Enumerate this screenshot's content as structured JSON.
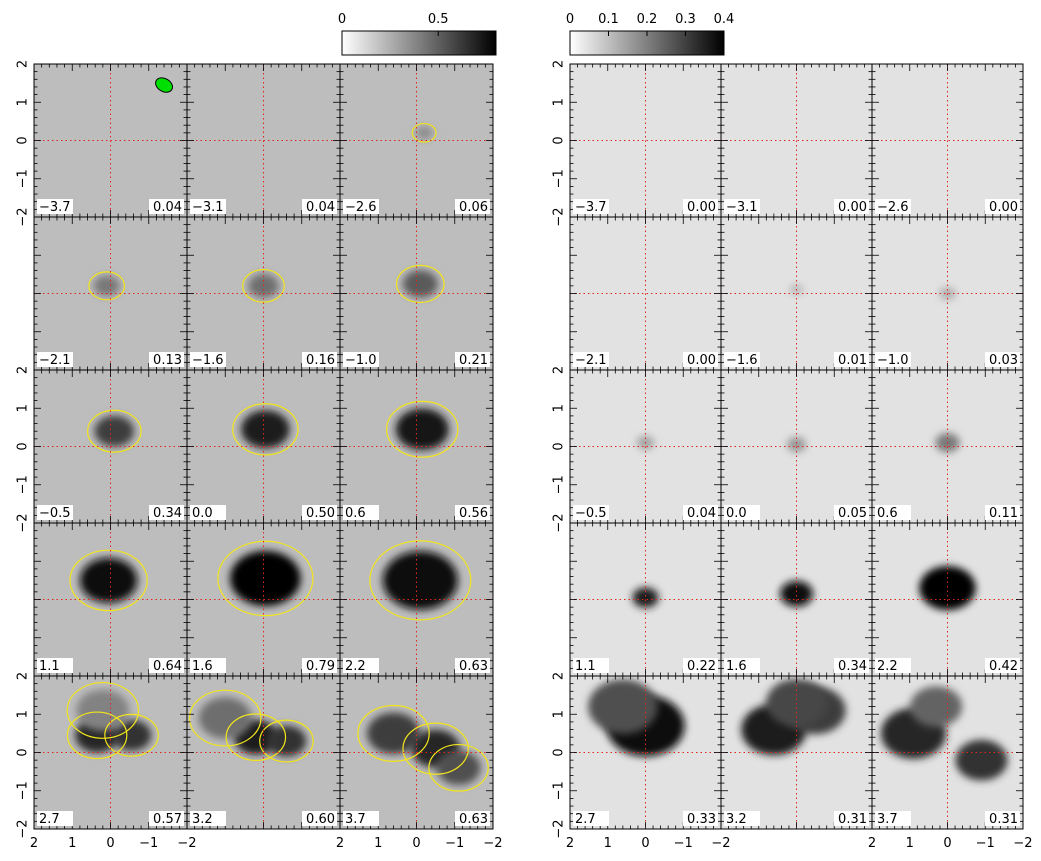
{
  "chart_data": {
    "type": "heatmap",
    "xlim": [
      2,
      -2
    ],
    "ylim": [
      -2,
      2
    ],
    "grid": false,
    "crosshair": {
      "x": 0,
      "y": 0,
      "color": "#e0261e"
    },
    "x_tick_labels": [
      "2",
      "1",
      "0",
      "−1",
      "−2"
    ],
    "y_tick_labels": [
      "−2",
      "−1",
      "0",
      "1",
      "2"
    ],
    "left_map": {
      "colorbar": {
        "range": [
          0,
          0.8
        ],
        "tick_labels": [
          "0",
          "0.5"
        ],
        "tick_values": [
          0,
          0.5
        ]
      },
      "background_color": "#bdbdbd",
      "contour_colors": {
        "positive": "#f2e51c",
        "negative": "#1d2fd6"
      },
      "beam": {
        "x": -1.4,
        "y": 1.45,
        "color": "#00e000"
      },
      "panels": [
        {
          "velocity": "−3.7",
          "peak": "0.04",
          "blobs": []
        },
        {
          "velocity": "−3.1",
          "peak": "0.04",
          "blobs": []
        },
        {
          "velocity": "−2.6",
          "peak": "0.06",
          "blobs": [
            {
              "x": -0.2,
              "y": 0.2,
              "r": 0.2,
              "a": 0.3
            }
          ]
        },
        {
          "velocity": "−2.1",
          "peak": "0.13",
          "blobs": [
            {
              "x": 0.1,
              "y": 0.2,
              "r": 0.3,
              "a": 0.4
            }
          ]
        },
        {
          "velocity": "−1.6",
          "peak": "0.16",
          "blobs": [
            {
              "x": 0.0,
              "y": 0.2,
              "r": 0.35,
              "a": 0.45
            }
          ]
        },
        {
          "velocity": "−1.0",
          "peak": "0.21",
          "blobs": [
            {
              "x": -0.1,
              "y": 0.25,
              "r": 0.4,
              "a": 0.55
            }
          ]
        },
        {
          "velocity": "−0.5",
          "peak": "0.34",
          "blobs": [
            {
              "x": -0.1,
              "y": 0.4,
              "r": 0.45,
              "a": 0.7
            }
          ]
        },
        {
          "velocity": "0.0",
          "peak": "0.50",
          "blobs": [
            {
              "x": -0.05,
              "y": 0.45,
              "r": 0.55,
              "a": 0.85
            }
          ]
        },
        {
          "velocity": "0.6",
          "peak": "0.56",
          "blobs": [
            {
              "x": -0.15,
              "y": 0.45,
              "r": 0.6,
              "a": 0.9
            }
          ]
        },
        {
          "velocity": "1.1",
          "peak": "0.64",
          "blobs": [
            {
              "x": 0.05,
              "y": 0.5,
              "r": 0.65,
              "a": 0.95
            }
          ]
        },
        {
          "velocity": "1.6",
          "peak": "0.79",
          "blobs": [
            {
              "x": -0.05,
              "y": 0.55,
              "r": 0.8,
              "a": 1.0
            }
          ]
        },
        {
          "velocity": "2.2",
          "peak": "0.63",
          "blobs": [
            {
              "x": -0.1,
              "y": 0.5,
              "r": 0.85,
              "a": 0.95
            }
          ]
        },
        {
          "velocity": "2.7",
          "peak": "0.57",
          "blobs": [
            {
              "x": 0.35,
              "y": 0.45,
              "r": 0.5,
              "a": 0.8
            },
            {
              "x": -0.55,
              "y": 0.45,
              "r": 0.45,
              "a": 0.75
            },
            {
              "x": 0.2,
              "y": 1.1,
              "r": 0.6,
              "a": 0.35
            }
          ]
        },
        {
          "velocity": "3.2",
          "peak": "0.60",
          "blobs": [
            {
              "x": 0.2,
              "y": 0.4,
              "r": 0.5,
              "a": 0.85
            },
            {
              "x": -0.6,
              "y": 0.3,
              "r": 0.45,
              "a": 0.75
            },
            {
              "x": 1.0,
              "y": 0.9,
              "r": 0.6,
              "a": 0.45
            }
          ]
        },
        {
          "velocity": "3.7",
          "peak": "0.63",
          "blobs": [
            {
              "x": 0.6,
              "y": 0.5,
              "r": 0.6,
              "a": 0.7
            },
            {
              "x": -0.5,
              "y": 0.1,
              "r": 0.55,
              "a": 0.8
            },
            {
              "x": -1.1,
              "y": -0.4,
              "r": 0.5,
              "a": 0.6
            }
          ]
        }
      ]
    },
    "right_map": {
      "colorbar": {
        "range": [
          0,
          0.4
        ],
        "tick_labels": [
          "0",
          "0.1",
          "0.2",
          "0.3",
          "0.4"
        ],
        "tick_values": [
          0,
          0.1,
          0.2,
          0.3,
          0.4
        ]
      },
      "background_color": "#e2e2e2",
      "panels": [
        {
          "velocity": "−3.7",
          "peak": "0.00",
          "blobs": []
        },
        {
          "velocity": "−3.1",
          "peak": "0.00",
          "blobs": []
        },
        {
          "velocity": "−2.6",
          "peak": "0.00",
          "blobs": []
        },
        {
          "velocity": "−2.1",
          "peak": "0.00",
          "blobs": []
        },
        {
          "velocity": "−1.6",
          "peak": "0.01",
          "blobs": [
            {
              "x": 0.0,
              "y": 0.1,
              "r": 0.15,
              "a": 0.1
            }
          ]
        },
        {
          "velocity": "−1.0",
          "peak": "0.03",
          "blobs": [
            {
              "x": 0.0,
              "y": 0.0,
              "r": 0.18,
              "a": 0.15
            }
          ]
        },
        {
          "velocity": "−0.5",
          "peak": "0.04",
          "blobs": [
            {
              "x": 0.0,
              "y": 0.1,
              "r": 0.2,
              "a": 0.2
            }
          ]
        },
        {
          "velocity": "0.0",
          "peak": "0.05",
          "blobs": [
            {
              "x": 0.0,
              "y": 0.05,
              "r": 0.22,
              "a": 0.25
            }
          ]
        },
        {
          "velocity": "0.6",
          "peak": "0.11",
          "blobs": [
            {
              "x": 0.0,
              "y": 0.1,
              "r": 0.28,
              "a": 0.4
            }
          ]
        },
        {
          "velocity": "1.1",
          "peak": "0.22",
          "blobs": [
            {
              "x": 0.0,
              "y": 0.05,
              "r": 0.3,
              "a": 0.85
            }
          ]
        },
        {
          "velocity": "1.6",
          "peak": "0.34",
          "blobs": [
            {
              "x": 0.0,
              "y": 0.15,
              "r": 0.38,
              "a": 0.95
            }
          ]
        },
        {
          "velocity": "2.2",
          "peak": "0.42",
          "blobs": [
            {
              "x": 0.0,
              "y": 0.3,
              "r": 0.65,
              "a": 1.0
            }
          ]
        },
        {
          "velocity": "2.7",
          "peak": "0.33",
          "blobs": [
            {
              "x": 0.0,
              "y": 0.7,
              "r": 0.9,
              "a": 0.95
            },
            {
              "x": 0.6,
              "y": 1.2,
              "r": 0.8,
              "a": 0.6
            }
          ]
        },
        {
          "velocity": "3.2",
          "peak": "0.31",
          "blobs": [
            {
              "x": 0.6,
              "y": 0.6,
              "r": 0.75,
              "a": 0.85
            },
            {
              "x": -0.5,
              "y": 1.1,
              "r": 0.7,
              "a": 0.7
            },
            {
              "x": 0.0,
              "y": 1.3,
              "r": 0.7,
              "a": 0.65
            }
          ]
        },
        {
          "velocity": "3.7",
          "peak": "0.31",
          "blobs": [
            {
              "x": 0.9,
              "y": 0.5,
              "r": 0.75,
              "a": 0.8
            },
            {
              "x": 0.3,
              "y": 1.2,
              "r": 0.6,
              "a": 0.5
            },
            {
              "x": -0.9,
              "y": -0.2,
              "r": 0.6,
              "a": 0.75
            }
          ]
        }
      ]
    }
  }
}
